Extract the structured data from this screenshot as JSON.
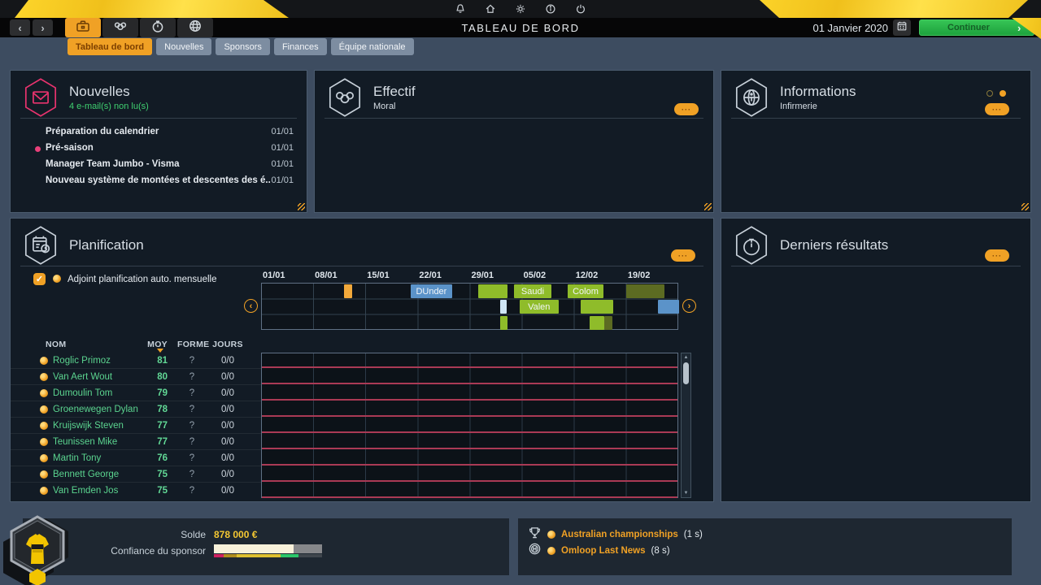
{
  "topbar": {
    "icons": [
      "bell",
      "home",
      "settings",
      "info",
      "power"
    ]
  },
  "nav": {
    "title": "TABLEAU DE BORD",
    "date": "01 Janvier 2020",
    "continue_label": "Continuer",
    "tabs": [
      "briefcase",
      "riders",
      "stopwatch",
      "globe"
    ],
    "active_tab": "briefcase"
  },
  "icons": {
    "back": "‹",
    "forward": "›",
    "continue_chev": "›",
    "timeline_left": "‹",
    "timeline_right": "›",
    "check": "✓",
    "scroll_up": "▲",
    "scroll_down": "▼",
    "more": "···"
  },
  "subtabs": [
    {
      "label": "Tableau de bord",
      "active": true
    },
    {
      "label": "Nouvelles",
      "active": false
    },
    {
      "label": "Sponsors",
      "active": false
    },
    {
      "label": "Finances",
      "active": false
    },
    {
      "label": "Équipe nationale",
      "active": false
    }
  ],
  "panels": {
    "nouvelles": {
      "title": "Nouvelles",
      "subtitle": "4 e-mail(s) non lu(s)",
      "items": [
        {
          "label": "Préparation du calendrier",
          "date": "01/01",
          "unread": false
        },
        {
          "label": "Pré-saison",
          "date": "01/01",
          "unread": true
        },
        {
          "label": "Manager Team Jumbo - Visma",
          "date": "01/01",
          "unread": false
        },
        {
          "label": "Nouveau système de montées et descentes des é..",
          "date": "01/01",
          "unread": false
        }
      ]
    },
    "effectif": {
      "title": "Effectif",
      "subtitle": "Moral"
    },
    "informations": {
      "title": "Informations",
      "subtitle": "Infirmerie"
    },
    "planification": {
      "title": "Planification",
      "auto_label": "Adjoint planification auto. mensuelle",
      "timeline": {
        "dates": [
          "01/01",
          "08/01",
          "15/01",
          "22/01",
          "29/01",
          "05/02",
          "12/02",
          "19/02"
        ],
        "days_total": 56,
        "bars": [
          {
            "row": 0,
            "start": 11,
            "end": 12.1,
            "color": "orange",
            "label": ""
          },
          {
            "row": 0,
            "start": 20,
            "end": 25.5,
            "color": "blue",
            "label": "DUnder"
          },
          {
            "row": 0,
            "start": 29,
            "end": 33,
            "color": "green",
            "label": ""
          },
          {
            "row": 0,
            "start": 33.8,
            "end": 38.9,
            "color": "green",
            "label": "Saudi"
          },
          {
            "row": 0,
            "start": 41,
            "end": 45.9,
            "color": "green",
            "label": "Colom"
          },
          {
            "row": 0,
            "start": 48.9,
            "end": 54,
            "color": "olive",
            "label": ""
          },
          {
            "row": 1,
            "start": 32,
            "end": 32.9,
            "color": "lightblue",
            "label": ""
          },
          {
            "row": 1,
            "start": 34.6,
            "end": 39.8,
            "color": "green",
            "label": "Valen"
          },
          {
            "row": 1,
            "start": 42.8,
            "end": 47.2,
            "color": "green",
            "label": ""
          },
          {
            "row": 1,
            "start": 53.2,
            "end": 56,
            "color": "blue",
            "label": ""
          },
          {
            "row": 2,
            "start": 32,
            "end": 33,
            "color": "green",
            "label": ""
          },
          {
            "row": 2,
            "start": 44,
            "end": 46,
            "color": "green",
            "label": ""
          },
          {
            "row": 2,
            "start": 46,
            "end": 47.1,
            "color": "olive",
            "label": ""
          }
        ]
      },
      "table": {
        "headers": {
          "nom": "NOM",
          "moy": "MOY",
          "forme": "FORME",
          "jours": "JOURS"
        },
        "riders": [
          {
            "name": "Roglic Primoz",
            "moy": "81",
            "forme": "?",
            "jours": "0/0"
          },
          {
            "name": "Van Aert Wout",
            "moy": "80",
            "forme": "?",
            "jours": "0/0"
          },
          {
            "name": "Dumoulin Tom",
            "moy": "79",
            "forme": "?",
            "jours": "0/0"
          },
          {
            "name": "Groenewegen Dylan",
            "moy": "78",
            "forme": "?",
            "jours": "0/0"
          },
          {
            "name": "Kruijswijk Steven",
            "moy": "77",
            "forme": "?",
            "jours": "0/0"
          },
          {
            "name": "Teunissen Mike",
            "moy": "77",
            "forme": "?",
            "jours": "0/0"
          },
          {
            "name": "Martin Tony",
            "moy": "76",
            "forme": "?",
            "jours": "0/0"
          },
          {
            "name": "Bennett George",
            "moy": "75",
            "forme": "?",
            "jours": "0/0"
          },
          {
            "name": "Van Emden Jos",
            "moy": "75",
            "forme": "?",
            "jours": "0/0"
          }
        ]
      }
    },
    "derniers": {
      "title": "Derniers résultats"
    }
  },
  "bottombar": {
    "solde_label": "Solde",
    "solde_value": "878 000 €",
    "confiance_label": "Confiance du sponsor",
    "confidence_fill_pct": 74,
    "confidence_segments": [
      {
        "color": "#cf2160",
        "pct": 9
      },
      {
        "color": "#b08d1d",
        "pct": 12
      },
      {
        "color": "#dfc02f",
        "pct": 41
      },
      {
        "color": "#2bc76a",
        "pct": 16
      },
      {
        "color": "#3f464d",
        "pct": 22
      }
    ],
    "accent_orange": "#f0a125",
    "notifications": [
      {
        "icon": "trophy",
        "label": "Australian championships",
        "suffix": "(1 s)"
      },
      {
        "icon": "wheel",
        "label": "Omloop Last News",
        "suffix": "(8 s)"
      }
    ]
  }
}
